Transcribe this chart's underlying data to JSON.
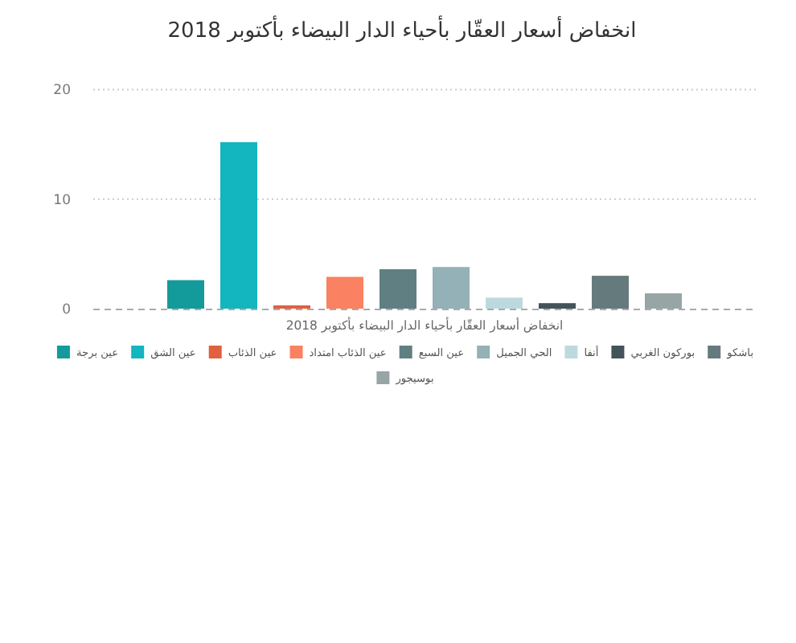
{
  "chart_data": {
    "type": "bar",
    "title": "انخفاض أسعار العقّار بأحياء الدار البيضاء بأكتوبر 2018",
    "categories": [
      "انخفاض أسعار العقّار بأحياء الدار البيضاء بأكتوبر 2018"
    ],
    "series": [
      {
        "name": "عين برجة",
        "color": "#139a9b",
        "values": [
          2.6
        ]
      },
      {
        "name": "عين الشق",
        "color": "#13b5bf",
        "values": [
          15.2
        ]
      },
      {
        "name": "عين الذئاب",
        "color": "#e0603f",
        "values": [
          0.3
        ]
      },
      {
        "name": "عين الذئاب امتداد",
        "color": "#fa8161",
        "values": [
          2.9
        ]
      },
      {
        "name": "عين السبع",
        "color": "#5f7f82",
        "values": [
          3.6
        ]
      },
      {
        "name": "الحي الجميل",
        "color": "#93b1b6",
        "values": [
          3.8
        ]
      },
      {
        "name": "أنفا",
        "color": "#bcd9df",
        "values": [
          1.0
        ]
      },
      {
        "name": "بوركون الغربي",
        "color": "#425458",
        "values": [
          0.5
        ]
      },
      {
        "name": "باشكو",
        "color": "#657a7c",
        "values": [
          3.0
        ]
      },
      {
        "name": "بوسيجور",
        "color": "#97a5a5",
        "values": [
          1.4
        ]
      }
    ],
    "ylim": [
      0,
      20
    ],
    "yticks": [
      0,
      10,
      20
    ],
    "grid": "y",
    "legend": "bottom"
  }
}
